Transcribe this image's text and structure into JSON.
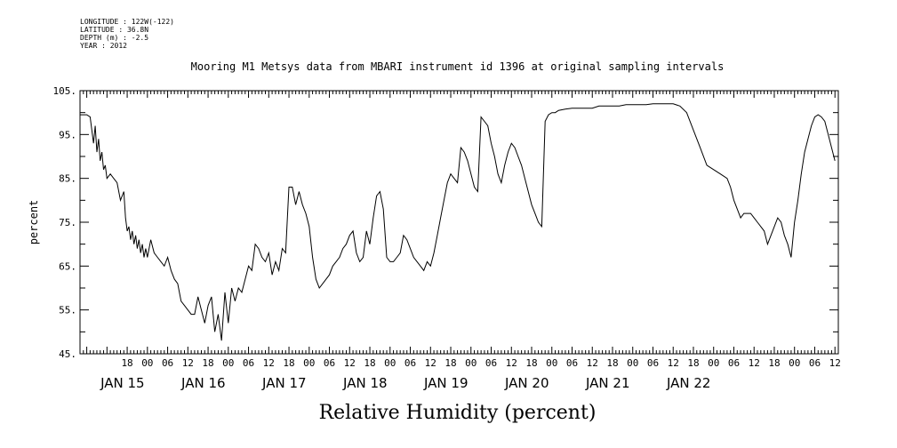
{
  "header": {
    "longitude": "LONGITUDE : 122W(-122)",
    "latitude": "LATITUDE : 36.8N",
    "depth": "DEPTH (m) : -2.5",
    "year": "YEAR : 2012"
  },
  "chart_data": {
    "type": "line",
    "title": "Mooring M1 Metsys data from MBARI instrument id 1396 at original sampling intervals",
    "xlabel": "Relative Humidity (percent)",
    "ylabel": "percent",
    "ylim": [
      45,
      105
    ],
    "y_ticks": [
      "45.",
      "55.",
      "65.",
      "75.",
      "85.",
      "95.",
      "105."
    ],
    "x_unit": "hours since JAN 15 00:00",
    "xlim": [
      -20,
      205
    ],
    "hour_tick_labels": [
      "18",
      "00",
      "06",
      "12",
      "18",
      "00",
      "06",
      "12",
      "18",
      "00",
      "06",
      "12",
      "18",
      "00",
      "06",
      "12",
      "18",
      "00",
      "06",
      "12",
      "18",
      "00",
      "06",
      "12",
      "18",
      "00",
      "06",
      "12",
      "18",
      "00",
      "06",
      "12",
      "18",
      "00",
      "06",
      "12"
    ],
    "date_labels": [
      "JAN 15",
      "JAN 16",
      "JAN 17",
      "JAN 18",
      "JAN 19",
      "JAN 20",
      "JAN 21",
      "JAN 22"
    ],
    "grid": false,
    "series": [
      {
        "color": "#000000",
        "x": [
          -20,
          -18,
          -17,
          -16.5,
          -16,
          -15.5,
          -15,
          -14.5,
          -14,
          -13.5,
          -13,
          -12.5,
          -12,
          -11,
          -10,
          -9,
          -8,
          -7,
          -6.5,
          -6,
          -5.5,
          -5,
          -4.5,
          -4,
          -3.5,
          -3,
          -2.5,
          -2,
          -1.5,
          -1,
          -0.5,
          0,
          1,
          2,
          3,
          4,
          5,
          6,
          7,
          8,
          9,
          10,
          11,
          12,
          13,
          14,
          15,
          16,
          17,
          18,
          19,
          20,
          21,
          22,
          23,
          24,
          25,
          26,
          27,
          28,
          29,
          30,
          31,
          32,
          33,
          34,
          35,
          36,
          37,
          38,
          39,
          40,
          41,
          42,
          43,
          44,
          45,
          46,
          47,
          48,
          49,
          50,
          51,
          52,
          53,
          54,
          55,
          56,
          57,
          58,
          59,
          60,
          61,
          62,
          63,
          64,
          65,
          66,
          67,
          68,
          69,
          70,
          71,
          72,
          73,
          74,
          75,
          76,
          77,
          78,
          79,
          80,
          81,
          82,
          83,
          84,
          85,
          86,
          87,
          88,
          89,
          90,
          91,
          92,
          93,
          94,
          95,
          96,
          97,
          98,
          99,
          100,
          101,
          102,
          103,
          104,
          105,
          106,
          107,
          108,
          109,
          110,
          111,
          112,
          113,
          114,
          115,
          116,
          117,
          118,
          119,
          120,
          121,
          122,
          124,
          126,
          128,
          130,
          132,
          134,
          136,
          138,
          140,
          142,
          144,
          146,
          148,
          150,
          152,
          154,
          156,
          158,
          160,
          162,
          164,
          166,
          168,
          170,
          172,
          173,
          174,
          175,
          176,
          177,
          178,
          179,
          180,
          181,
          182,
          183,
          184,
          185,
          186,
          187,
          188,
          189,
          190,
          191,
          192,
          193,
          194,
          195,
          196,
          197,
          198,
          199,
          200,
          201,
          202,
          203,
          204
        ],
        "values": [
          99.5,
          99.5,
          99,
          96,
          93,
          97,
          91,
          94,
          89,
          91,
          87,
          88,
          85,
          86,
          85,
          84,
          80,
          82,
          76,
          73,
          74,
          71,
          73,
          70,
          72,
          69,
          71,
          68,
          70,
          67,
          69,
          67,
          71,
          68,
          67,
          66,
          65,
          67,
          64,
          62,
          61,
          57,
          56,
          55,
          54,
          54,
          58,
          55,
          52,
          56,
          58,
          50,
          54,
          48,
          59,
          52,
          60,
          57,
          60,
          59,
          62,
          65,
          64,
          70,
          69,
          67,
          66,
          68,
          63,
          66,
          64,
          69,
          68,
          83,
          83,
          79,
          82,
          79,
          77,
          74,
          67,
          62,
          60,
          61,
          62,
          63,
          65,
          66,
          67,
          69,
          70,
          72,
          73,
          68,
          66,
          67,
          73,
          70,
          76,
          81,
          82,
          78,
          67,
          66,
          66,
          67,
          68,
          72,
          71,
          69,
          67,
          66,
          65,
          64,
          66,
          65,
          68,
          72,
          76,
          80,
          84,
          86,
          85,
          84,
          92,
          91,
          89,
          86,
          83,
          82,
          99,
          98,
          97,
          93,
          90,
          86,
          84,
          88,
          91,
          93,
          92,
          90,
          88,
          85,
          82,
          79,
          77,
          75,
          74,
          98,
          99.5,
          100,
          100,
          100.5,
          100.8,
          101,
          101,
          101,
          101,
          101.5,
          101.5,
          101.5,
          101.5,
          101.8,
          101.8,
          101.8,
          101.8,
          102,
          102,
          102,
          102,
          101.5,
          100,
          96,
          92,
          88,
          87,
          86,
          85,
          83,
          80,
          78,
          76,
          77,
          77,
          77,
          76,
          75,
          74,
          73,
          70,
          72,
          74,
          76,
          75,
          72,
          70,
          67,
          75,
          80,
          86,
          91,
          94,
          97,
          99,
          99.5,
          99,
          98,
          95,
          92,
          89
        ]
      }
    ]
  }
}
